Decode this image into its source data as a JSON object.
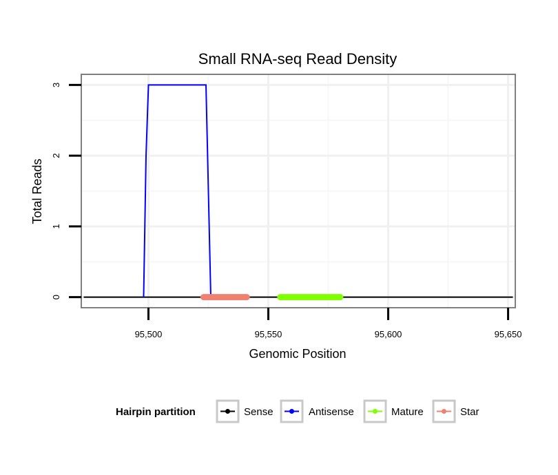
{
  "chart_data": {
    "type": "line",
    "title": "Small RNA-seq Read Density",
    "xlabel": "Genomic Position",
    "ylabel": "Total Reads",
    "xlim": [
      95472,
      95653
    ],
    "ylim": [
      -0.15,
      3.15
    ],
    "x_ticks": [
      95500,
      95550,
      95600,
      95650
    ],
    "x_tick_labels": [
      "95,500",
      "95,550",
      "95,600",
      "95,650"
    ],
    "y_ticks": [
      0,
      1,
      2,
      3
    ],
    "y_tick_labels": [
      "0",
      "1",
      "2",
      "3"
    ],
    "grid": true,
    "legend_position": "bottom",
    "legend_title": "Hairpin partition",
    "series": [
      {
        "name": "Sense",
        "color": "#000000",
        "points": [
          [
            95473,
            0
          ],
          [
            95652,
            0
          ]
        ]
      },
      {
        "name": "Antisense",
        "color": "#0000ff",
        "points": [
          [
            95498,
            0
          ],
          [
            95499,
            2
          ],
          [
            95500,
            3
          ],
          [
            95524,
            3
          ],
          [
            95526,
            0
          ]
        ]
      },
      {
        "name": "Mature",
        "color": "#7fff00",
        "points": [
          [
            95555,
            0
          ],
          [
            95580,
            0
          ]
        ]
      },
      {
        "name": "Star",
        "color": "#f08070",
        "points": [
          [
            95523,
            0
          ],
          [
            95541,
            0
          ]
        ]
      }
    ]
  }
}
